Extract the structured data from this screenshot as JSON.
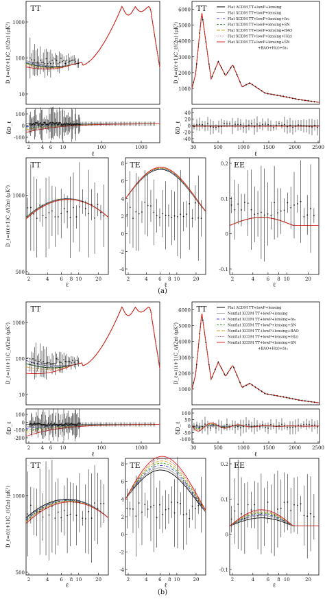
{
  "figure": {
    "captions": [
      "(a)",
      "(b)"
    ]
  },
  "axis_text": {
    "ell": "ℓ",
    "dl_full": "D_ℓ=ℓ(ℓ+1)C_ℓ/(2π)  (μK²)",
    "dl_short": "D_ℓ=ℓ(ℓ+1)C_ℓ/(2π) (μK²)",
    "delta": "δD_ℓ"
  },
  "panels_text": {
    "tt": "TT",
    "te": "TE",
    "ee": "EE"
  },
  "legends": {
    "a": [
      "Flat ΛCDM TT+lowP+lensing",
      "Flat XCDM TT+lowP+lensing",
      "Flat XCDM TT+lowP+lensing+fσ₈",
      "Flat XCDM TT+lowP+lensing+SN",
      "Flat XCDM TT+lowP+lensing+BAO",
      "Flat XCDM TT+lowP+lensing+H(z)",
      "Flat XCDM TT+lowP+lensing+SN",
      "+BAO+H(z)+fσ₈"
    ],
    "b": [
      "Flat ΛCDM TT+lowP+lensing",
      "Nonflat XCDM TT+lowP+lensing",
      "Nonflat XCDM TT+lowP+lensing+fσ₈",
      "Nonflat XCDM TT+lowP+lensing+SN",
      "Nonflat XCDM TT+lowP+lensing+BAO",
      "Nonflat XCDM TT+lowP+lensing+H(z)",
      "Nonflat XCDM TT+lowP+lensing+SN",
      "+BAO+H(z)+fσ₈"
    ]
  },
  "colors": {
    "lcdm": "#000000",
    "base": "#9a9a9a",
    "fs8": "#3a3ad0",
    "sn": "#2a9a2a",
    "bao": "#e0a020",
    "hz": "#c05050",
    "all": "#e02020"
  },
  "chart_data": [
    {
      "id": "a-tt-full",
      "type": "line",
      "title": "TT",
      "xscale": "log",
      "yscale": "log",
      "xticks": [
        2,
        10,
        100,
        1000
      ],
      "xticklabels": [
        "2",
        "10",
        "100",
        "1000"
      ],
      "yticks": [
        10,
        100,
        1000
      ],
      "yticklabels": [
        "10",
        "100",
        "1000"
      ],
      "ylim": [
        10,
        7000
      ],
      "xlim": [
        2,
        2500
      ],
      "ylabel": "D_ℓ=ℓ(ℓ+1)C_ℓ/(2π)  (μK²)",
      "note": "theory curve with first acoustic peak near ℓ=220, data with error bars at low ℓ"
    },
    {
      "id": "a-tt-lin",
      "type": "line",
      "title": "TT",
      "x": [
        30,
        100,
        220,
        400,
        540,
        680,
        820,
        1000,
        1150,
        1450,
        1800,
        2100,
        2500
      ],
      "values": [
        1000,
        1900,
        5800,
        1600,
        2700,
        1800,
        2500,
        1100,
        1350,
        700,
        500,
        300,
        120
      ],
      "xlim": [
        30,
        2500
      ],
      "ylim": [
        0,
        6500
      ],
      "xticks": [
        30,
        500,
        1000,
        1500,
        2000,
        2500
      ],
      "yticks": [
        1000,
        2000,
        3000,
        4000,
        5000,
        6000
      ]
    },
    {
      "id": "a-resid-left",
      "type": "line",
      "ylabel": "δD_ℓ",
      "yticks": [
        -100,
        0,
        100
      ],
      "xticklabels": [
        "2",
        "4",
        "6",
        "10",
        "100",
        "1000"
      ],
      "xlabel": "ℓ"
    },
    {
      "id": "a-resid-right",
      "type": "line",
      "ylabel": "δD_ℓ",
      "yticks": [
        -40,
        -20,
        0,
        20,
        40
      ],
      "xticklabels": [
        "30",
        "500",
        "1000",
        "1500",
        "2000",
        "2500"
      ],
      "xlabel": "ℓ"
    },
    {
      "id": "a-tt-low",
      "type": "line",
      "title": "TT",
      "xticklabels": [
        "2",
        "4",
        "6",
        "8",
        "10",
        "20"
      ],
      "yticklabels": [
        "500",
        "1000"
      ],
      "xlabel": "ℓ"
    },
    {
      "id": "a-te",
      "type": "line",
      "title": "TE",
      "yticks": [
        -4,
        -2,
        0,
        2,
        4,
        6,
        8
      ],
      "xticklabels": [
        "2",
        "4",
        "6",
        "8",
        "10",
        "20"
      ],
      "xlabel": "ℓ"
    },
    {
      "id": "a-ee",
      "type": "line",
      "title": "EE",
      "yticks": [
        -0.1,
        0,
        0.1,
        0.2
      ],
      "xticklabels": [
        "2",
        "4",
        "6",
        "8",
        "10",
        "20"
      ],
      "xlabel": "ℓ"
    },
    {
      "id": "b-tt-full",
      "type": "line",
      "title": "TT",
      "xscale": "log",
      "yscale": "log",
      "yticklabels": [
        "10",
        "100",
        "1000"
      ]
    },
    {
      "id": "b-tt-lin",
      "type": "line",
      "title": "TT",
      "xticks": [
        30,
        500,
        1000,
        1500,
        2000,
        2500
      ],
      "yticks": [
        1000,
        2000,
        3000,
        4000,
        5000,
        6000
      ]
    },
    {
      "id": "b-resid-left",
      "type": "line",
      "ylabel": "δD_ℓ",
      "yticks": [
        -200,
        -100,
        0,
        100
      ],
      "xticklabels": [
        "2",
        "4",
        "6",
        "10",
        "100",
        "1000"
      ],
      "xlabel": "ℓ"
    },
    {
      "id": "b-resid-right",
      "type": "line",
      "ylabel": "δD_ℓ",
      "yticks": [
        -100,
        -50,
        0,
        50,
        100
      ],
      "xticklabels": [
        "30",
        "500",
        "1000",
        "1500",
        "2000",
        "2500"
      ],
      "xlabel": "ℓ"
    },
    {
      "id": "b-tt-low",
      "type": "line",
      "title": "TT",
      "xticklabels": [
        "2",
        "4",
        "6",
        "8",
        "10",
        "20"
      ],
      "yticklabels": [
        "500",
        "1000"
      ],
      "xlabel": "ℓ"
    },
    {
      "id": "b-te",
      "type": "line",
      "title": "TE",
      "yticks": [
        -4,
        -2,
        0,
        2,
        4,
        6,
        8
      ],
      "xticklabels": [
        "2",
        "4",
        "6",
        "8",
        "10",
        "20"
      ],
      "xlabel": "ℓ"
    },
    {
      "id": "b-ee",
      "type": "line",
      "title": "EE",
      "yticks": [
        -0.1,
        0,
        0.1,
        0.2
      ],
      "xticklabels": [
        "2",
        "4",
        "6",
        "8",
        "10",
        "20"
      ],
      "xlabel": "ℓ"
    }
  ]
}
